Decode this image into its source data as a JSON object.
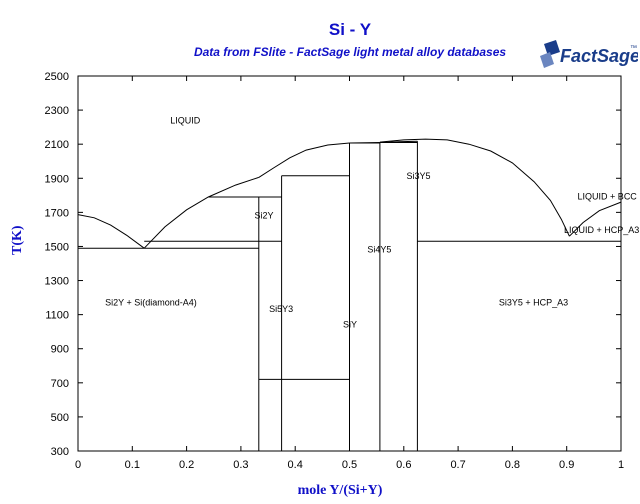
{
  "title": "Si - Y",
  "subtitle": "Data from FSlite - FactSage light metal alloy databases",
  "logo_text": "FactSage",
  "logo_mark": "™",
  "x_axis": {
    "label": "mole Y/(Si+Y)",
    "ticks": [
      "0",
      "0.1",
      "0.2",
      "0.3",
      "0.4",
      "0.5",
      "0.6",
      "0.7",
      "0.8",
      "0.9",
      "1"
    ],
    "range": [
      0,
      1
    ]
  },
  "y_axis": {
    "label": "T(K)",
    "ticks": [
      "300",
      "500",
      "700",
      "900",
      "1100",
      "1300",
      "1500",
      "1700",
      "1900",
      "2100",
      "2300",
      "2500"
    ],
    "range": [
      300,
      2500
    ]
  },
  "regions": [
    {
      "id": "liquid",
      "text": "LIQUID",
      "x": 0.17,
      "y": 2220
    },
    {
      "id": "si2y-upper",
      "text": "Si2Y",
      "x": 0.325,
      "y": 1665
    },
    {
      "id": "si3y5-upper",
      "text": "Si3Y5",
      "x": 0.605,
      "y": 1895
    },
    {
      "id": "liquid-bcc",
      "text": "LIQUID + BCC",
      "x": 0.92,
      "y": 1775
    },
    {
      "id": "liquid-hcp",
      "text": "LIQUID + HCP_A3",
      "x": 0.895,
      "y": 1580
    },
    {
      "id": "si4y5",
      "text": "Si4Y5",
      "x": 0.533,
      "y": 1465
    },
    {
      "id": "si2y-si",
      "text": "Si2Y + Si(diamond-A4)",
      "x": 0.05,
      "y": 1155
    },
    {
      "id": "si5y3",
      "text": "Si5Y3",
      "x": 0.352,
      "y": 1115
    },
    {
      "id": "siy",
      "text": "SiY",
      "x": 0.488,
      "y": 1025
    },
    {
      "id": "si3y5-hcp",
      "text": "Si3Y5 + HCP_A3",
      "x": 0.775,
      "y": 1155
    }
  ],
  "phase_lines": [
    {
      "id": "liquidus-si",
      "points": [
        [
          0,
          1687
        ],
        [
          0.03,
          1668
        ],
        [
          0.06,
          1625
        ],
        [
          0.09,
          1565
        ],
        [
          0.122,
          1490
        ]
      ]
    },
    {
      "id": "liquidus-si2y-left",
      "points": [
        [
          0.122,
          1490
        ],
        [
          0.16,
          1615
        ],
        [
          0.2,
          1715
        ],
        [
          0.24,
          1790
        ],
        [
          0.29,
          1860
        ],
        [
          0.333,
          1905
        ]
      ]
    },
    {
      "id": "liquidus-si5y3",
      "points": [
        [
          0.333,
          1905
        ],
        [
          0.36,
          1960
        ],
        [
          0.39,
          2020
        ],
        [
          0.42,
          2065
        ],
        [
          0.46,
          2095
        ],
        [
          0.5,
          2107
        ]
      ]
    },
    {
      "id": "liquidus-siy-si4y5",
      "points": [
        [
          0.5,
          2107
        ],
        [
          0.53,
          2108
        ],
        [
          0.556,
          2110
        ]
      ]
    },
    {
      "id": "liquidus-si4y5-si3y5",
      "points": [
        [
          0.556,
          2110
        ],
        [
          0.59,
          2114
        ],
        [
          0.625,
          2117
        ]
      ]
    },
    {
      "id": "liquidus-si3y5-dome",
      "points": [
        [
          0.556,
          2112
        ],
        [
          0.6,
          2125
        ],
        [
          0.64,
          2130
        ],
        [
          0.68,
          2125
        ],
        [
          0.72,
          2100
        ],
        [
          0.76,
          2060
        ],
        [
          0.8,
          1990
        ],
        [
          0.84,
          1880
        ],
        [
          0.87,
          1770
        ],
        [
          0.89,
          1660
        ],
        [
          0.905,
          1560
        ]
      ]
    },
    {
      "id": "liquidus-y",
      "points": [
        [
          0.905,
          1560
        ],
        [
          0.93,
          1640
        ],
        [
          0.96,
          1710
        ],
        [
          1,
          1760
        ]
      ]
    },
    {
      "id": "eutectic-si",
      "points": [
        [
          0,
          1490
        ],
        [
          0.333,
          1490
        ]
      ]
    },
    {
      "id": "si2y-bottom",
      "points": [
        [
          0.333,
          1530
        ],
        [
          0.375,
          1530
        ]
      ]
    },
    {
      "id": "si2y-upper",
      "points": [
        [
          0.122,
          1530
        ],
        [
          0.333,
          1530
        ]
      ]
    },
    {
      "id": "si2y-peritectic",
      "points": [
        [
          0.24,
          1790
        ],
        [
          0.375,
          1790
        ]
      ]
    },
    {
      "id": "si5y3-top",
      "points": [
        [
          0.375,
          1915
        ],
        [
          0.5,
          1915
        ]
      ]
    },
    {
      "id": "siy-top",
      "points": [
        [
          0.5,
          2107
        ],
        [
          0.556,
          2107
        ]
      ]
    },
    {
      "id": "si4y5-top",
      "points": [
        [
          0.556,
          2110
        ],
        [
          0.625,
          2110
        ]
      ]
    },
    {
      "id": "hcp-eutectic",
      "points": [
        [
          0.625,
          1530
        ],
        [
          1,
          1530
        ]
      ]
    },
    {
      "id": "siy-low",
      "points": [
        [
          0.333,
          720
        ],
        [
          0.5,
          720
        ]
      ]
    },
    {
      "id": "si2y-compound",
      "points": [
        [
          0.333,
          300
        ],
        [
          0.333,
          1790
        ]
      ]
    },
    {
      "id": "si5y3-compound",
      "points": [
        [
          0.375,
          300
        ],
        [
          0.375,
          1915
        ]
      ]
    },
    {
      "id": "siy-compound",
      "points": [
        [
          0.5,
          300
        ],
        [
          0.5,
          2107
        ]
      ]
    },
    {
      "id": "si4y5-compound",
      "points": [
        [
          0.556,
          300
        ],
        [
          0.556,
          2110
        ]
      ]
    },
    {
      "id": "si3y5-compound",
      "points": [
        [
          0.625,
          300
        ],
        [
          0.625,
          2117
        ]
      ]
    }
  ]
}
